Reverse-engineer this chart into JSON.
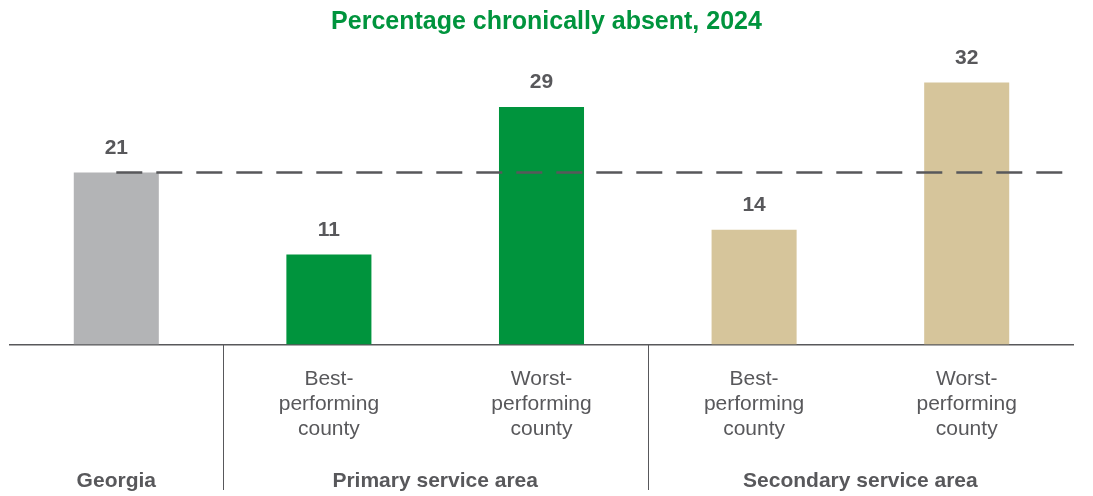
{
  "chart_data": {
    "type": "bar",
    "title": "Percentage chronically absent, 2024",
    "categories": [
      null,
      "Best-performing county",
      "Worst-performing county",
      "Best-performing county",
      "Worst-performing county"
    ],
    "values": [
      21,
      11,
      29,
      14,
      32
    ],
    "colors": [
      "#b3b4b6",
      "#00943d",
      "#00943d",
      "#d6c59b",
      "#d6c59b"
    ],
    "data_labels": true,
    "ref_lines": [
      {
        "axis": "y",
        "value": 21,
        "color": "#58585b",
        "line_style": "dashed"
      }
    ],
    "annotations": [
      "Georgia",
      "Primary service area",
      "Secondary service area"
    ],
    "legend": false,
    "grid": false
  }
}
